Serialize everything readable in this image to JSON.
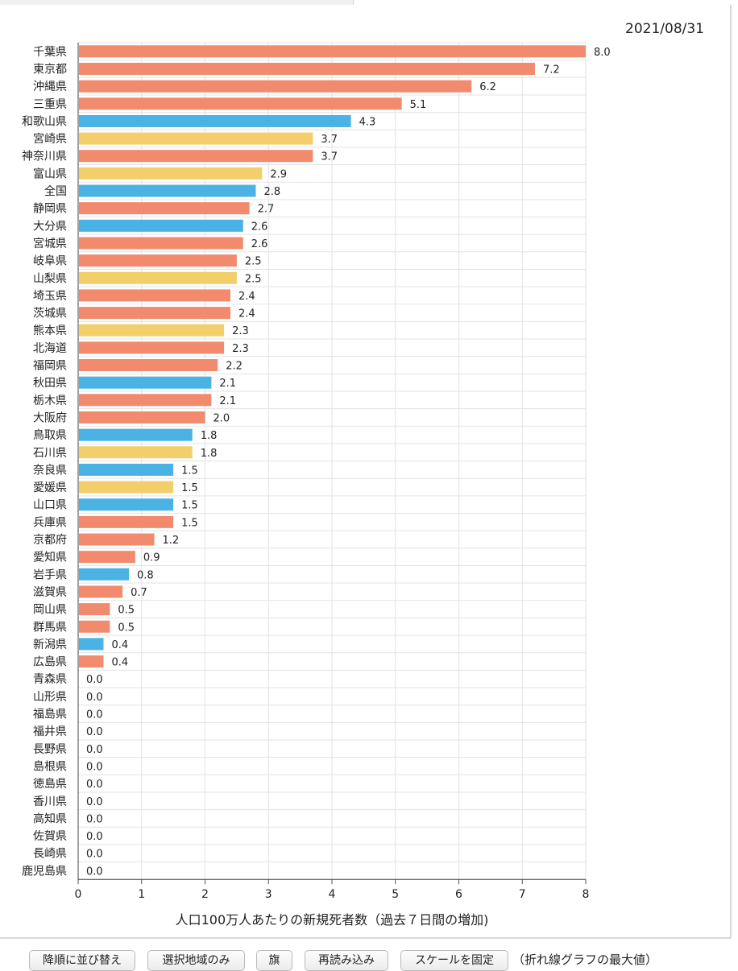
{
  "date": "2021/08/31",
  "toolbar": {
    "sort_desc": "降順に並び替え",
    "selected_only": "選択地域のみ",
    "flag": "旗",
    "reload": "再読み込み",
    "fix_scale": "スケールを固定",
    "scale_note": "（折れ線グラフの最大値）"
  },
  "colors": {
    "orange": "#f28b6e",
    "blue": "#4ab3e4",
    "yellow": "#f3cf6b"
  },
  "chart_data": {
    "type": "bar",
    "orientation": "horizontal",
    "xlabel": "人口100万人あたりの新規死者数（過去７日間の増加)",
    "xlim": [
      0,
      8
    ],
    "xticks": [
      "0",
      "1",
      "2",
      "3",
      "4",
      "5",
      "6",
      "7",
      "8"
    ],
    "grid": true,
    "categories": [
      "千葉県",
      "東京都",
      "沖縄県",
      "三重県",
      "和歌山県",
      "宮崎県",
      "神奈川県",
      "富山県",
      "全国",
      "静岡県",
      "大分県",
      "宮城県",
      "岐阜県",
      "山梨県",
      "埼玉県",
      "茨城県",
      "熊本県",
      "北海道",
      "福岡県",
      "秋田県",
      "栃木県",
      "大阪府",
      "鳥取県",
      "石川県",
      "奈良県",
      "愛媛県",
      "山口県",
      "兵庫県",
      "京都府",
      "愛知県",
      "岩手県",
      "滋賀県",
      "岡山県",
      "群馬県",
      "新潟県",
      "広島県",
      "青森県",
      "山形県",
      "福島県",
      "福井県",
      "長野県",
      "島根県",
      "徳島県",
      "香川県",
      "高知県",
      "佐賀県",
      "長崎県",
      "鹿児島県"
    ],
    "values": [
      8.0,
      7.2,
      6.2,
      5.1,
      4.3,
      3.7,
      3.7,
      2.9,
      2.8,
      2.7,
      2.6,
      2.6,
      2.5,
      2.5,
      2.4,
      2.4,
      2.3,
      2.3,
      2.2,
      2.1,
      2.1,
      2.0,
      1.8,
      1.8,
      1.5,
      1.5,
      1.5,
      1.5,
      1.2,
      0.9,
      0.8,
      0.7,
      0.5,
      0.5,
      0.4,
      0.4,
      0.0,
      0.0,
      0.0,
      0.0,
      0.0,
      0.0,
      0.0,
      0.0,
      0.0,
      0.0,
      0.0,
      0.0
    ],
    "value_labels": [
      "8.0",
      "7.2",
      "6.2",
      "5.1",
      "4.3",
      "3.7",
      "3.7",
      "2.9",
      "2.8",
      "2.7",
      "2.6",
      "2.6",
      "2.5",
      "2.5",
      "2.4",
      "2.4",
      "2.3",
      "2.3",
      "2.2",
      "2.1",
      "2.1",
      "2.0",
      "1.8",
      "1.8",
      "1.5",
      "1.5",
      "1.5",
      "1.5",
      "1.2",
      "0.9",
      "0.8",
      "0.7",
      "0.5",
      "0.5",
      "0.4",
      "0.4",
      "0.0",
      "0.0",
      "0.0",
      "0.0",
      "0.0",
      "0.0",
      "0.0",
      "0.0",
      "0.0",
      "0.0",
      "0.0",
      "0.0"
    ],
    "bar_colors": [
      "orange",
      "orange",
      "orange",
      "orange",
      "blue",
      "yellow",
      "orange",
      "yellow",
      "blue",
      "orange",
      "blue",
      "orange",
      "orange",
      "yellow",
      "orange",
      "orange",
      "yellow",
      "orange",
      "orange",
      "blue",
      "orange",
      "orange",
      "blue",
      "yellow",
      "blue",
      "yellow",
      "blue",
      "orange",
      "orange",
      "orange",
      "blue",
      "orange",
      "orange",
      "orange",
      "blue",
      "orange",
      "orange",
      "orange",
      "orange",
      "orange",
      "orange",
      "orange",
      "orange",
      "orange",
      "orange",
      "orange",
      "orange",
      "orange"
    ]
  }
}
